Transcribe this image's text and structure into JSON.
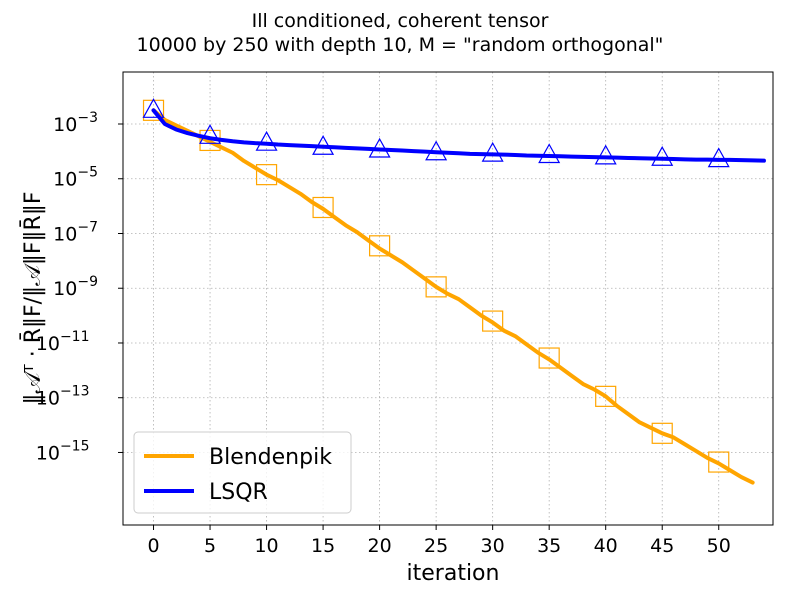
{
  "chart_data": {
    "type": "line",
    "title": "Ill conditioned, coherent tensor",
    "subtitle": "10000 by 250 with depth 10, M = \"random orthogonal\"",
    "xlabel": "iteration",
    "ylabel": "‖𝒜ᵀ · R̄‖F/‖𝒜‖F‖R̄‖F",
    "yscale": "log",
    "xlim": [
      -2.7,
      54.8
    ],
    "ylim_exp": [
      -17.65,
      -1.1
    ],
    "xticks": [
      0,
      5,
      10,
      15,
      20,
      25,
      30,
      35,
      40,
      45,
      50
    ],
    "yticks_exp": [
      -15,
      -13,
      -11,
      -9,
      -7,
      -5,
      -3
    ],
    "grid": true,
    "legend_position": "lower-left",
    "series": [
      {
        "name": "Blendenpik",
        "color": "#ffa500",
        "marker": "square",
        "x": [
          0,
          1,
          2,
          3,
          4,
          5,
          6,
          7,
          8,
          9,
          10,
          11,
          12,
          13,
          14,
          15,
          16,
          17,
          18,
          19,
          20,
          21,
          22,
          23,
          24,
          25,
          26,
          27,
          28,
          29,
          30,
          31,
          32,
          33,
          34,
          35,
          36,
          37,
          38,
          39,
          40,
          41,
          42,
          43,
          44,
          45,
          46,
          47,
          48,
          49,
          50,
          51,
          52,
          53
        ],
        "y_log10": [
          -2.5,
          -2.85,
          -3.05,
          -3.25,
          -3.45,
          -3.65,
          -3.85,
          -4.05,
          -4.35,
          -4.6,
          -4.85,
          -5.05,
          -5.3,
          -5.55,
          -5.85,
          -6.1,
          -6.4,
          -6.7,
          -6.95,
          -7.25,
          -7.55,
          -7.8,
          -8.05,
          -8.35,
          -8.65,
          -8.95,
          -9.2,
          -9.4,
          -9.7,
          -10.0,
          -10.25,
          -10.55,
          -10.75,
          -11.05,
          -11.35,
          -11.6,
          -11.9,
          -12.2,
          -12.5,
          -12.7,
          -12.95,
          -13.3,
          -13.6,
          -13.9,
          -14.1,
          -14.3,
          -14.45,
          -14.7,
          -14.95,
          -15.2,
          -15.4,
          -15.65,
          -15.9,
          -16.1
        ],
        "marker_x": [
          0,
          5,
          10,
          15,
          20,
          25,
          30,
          35,
          40,
          45,
          50
        ],
        "marker_y_log10": [
          -2.5,
          -3.6,
          -4.85,
          -6.05,
          -7.45,
          -8.95,
          -10.2,
          -11.55,
          -12.95,
          -14.3,
          -15.35
        ]
      },
      {
        "name": "LSQR",
        "color": "#0000ff",
        "marker": "triangle",
        "x": [
          0,
          1,
          2,
          3,
          4,
          5,
          6,
          7,
          8,
          9,
          10,
          11,
          12,
          13,
          14,
          15,
          16,
          17,
          18,
          19,
          20,
          21,
          22,
          23,
          24,
          25,
          26,
          27,
          28,
          29,
          30,
          31,
          32,
          33,
          34,
          35,
          36,
          37,
          38,
          39,
          40,
          41,
          42,
          43,
          44,
          45,
          46,
          47,
          48,
          49,
          50,
          51,
          52,
          53,
          54
        ],
        "y_log10": [
          -2.5,
          -3.0,
          -3.2,
          -3.33,
          -3.43,
          -3.52,
          -3.58,
          -3.63,
          -3.67,
          -3.7,
          -3.72,
          -3.75,
          -3.77,
          -3.79,
          -3.81,
          -3.83,
          -3.85,
          -3.87,
          -3.89,
          -3.91,
          -3.93,
          -3.95,
          -3.97,
          -3.99,
          -4.01,
          -4.03,
          -4.05,
          -4.07,
          -4.09,
          -4.1,
          -4.11,
          -4.12,
          -4.13,
          -4.15,
          -4.16,
          -4.17,
          -4.18,
          -4.19,
          -4.2,
          -4.21,
          -4.22,
          -4.23,
          -4.24,
          -4.25,
          -4.26,
          -4.27,
          -4.28,
          -4.29,
          -4.3,
          -4.3,
          -4.31,
          -4.31,
          -4.32,
          -4.33,
          -4.34
        ],
        "marker_x": [
          0,
          5,
          10,
          15,
          20,
          25,
          30,
          35,
          40,
          45,
          50
        ],
        "marker_y_log10": [
          -2.5,
          -3.45,
          -3.7,
          -3.85,
          -3.95,
          -4.05,
          -4.1,
          -4.15,
          -4.2,
          -4.25,
          -4.3
        ]
      }
    ]
  }
}
